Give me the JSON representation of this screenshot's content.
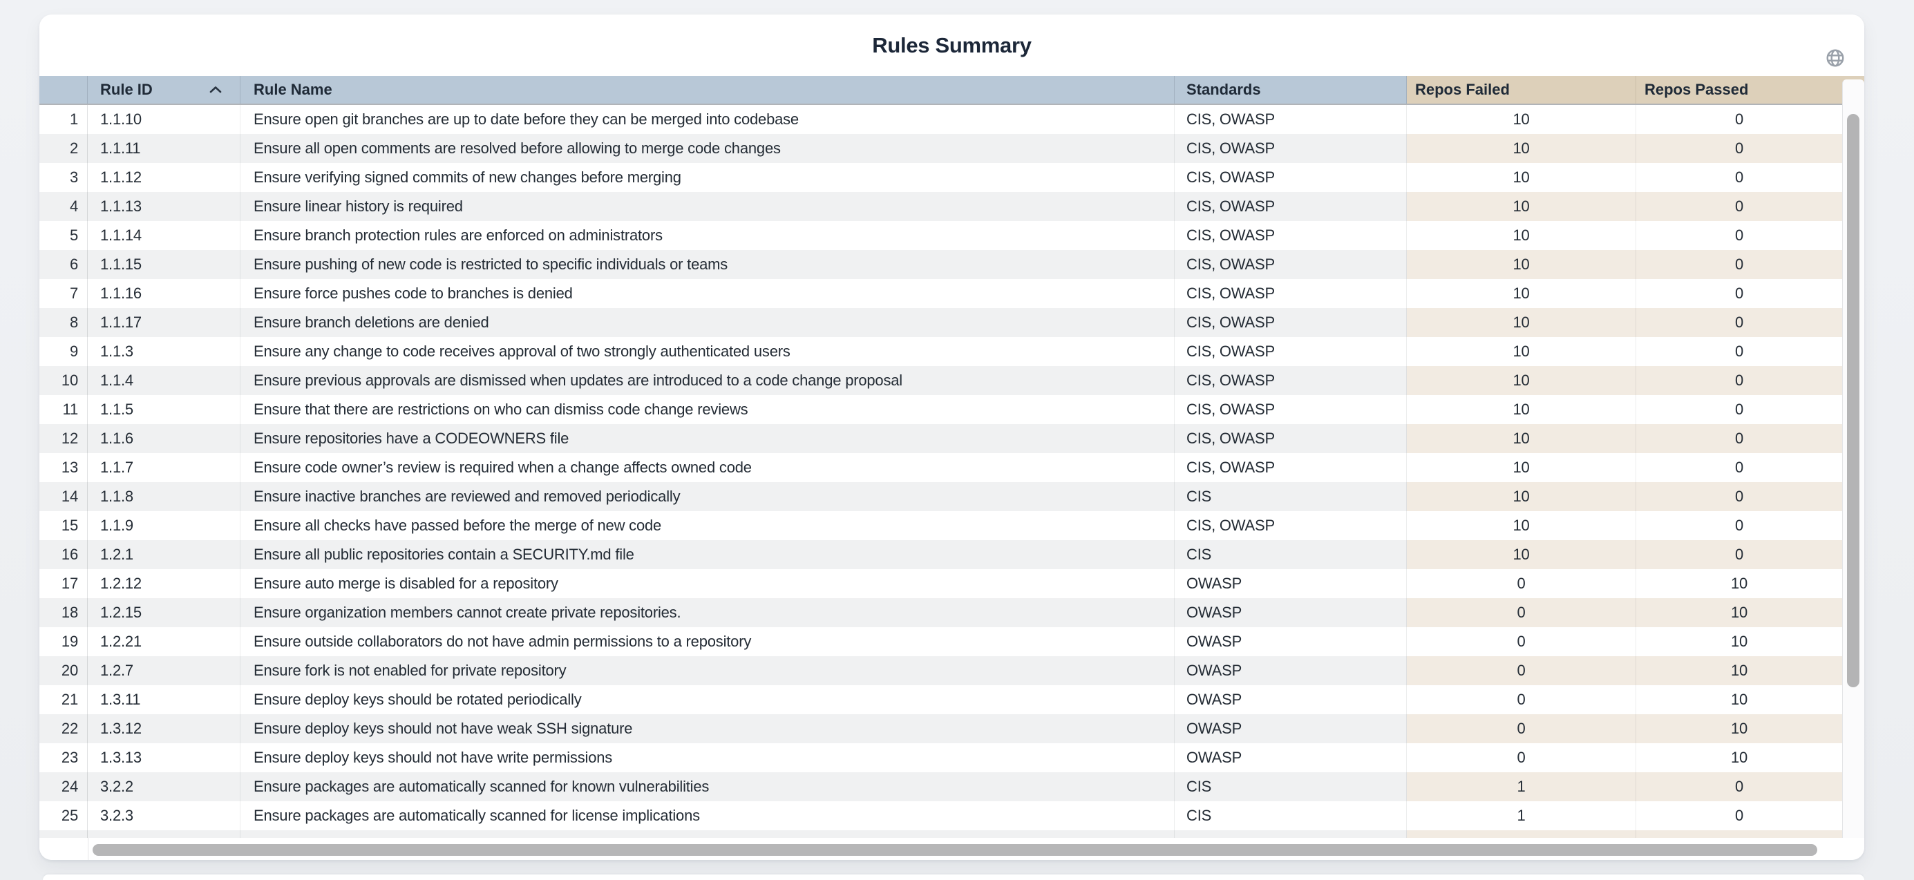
{
  "card": {
    "title": "Rules Summary"
  },
  "icons": {
    "globe": "globe-icon",
    "sort": "sort-ascending-icon"
  },
  "colors": {
    "header_blue": "#b8c8d7",
    "header_tan": "#ddd0ba",
    "stripe_gray": "#f0f1f2",
    "stripe_beige": "#f2ebe2",
    "text_dark": "#1f2a37",
    "scrollbar_thumb": "#b4b4b5",
    "page_background": "#eef0f3"
  },
  "table": {
    "columns": [
      {
        "key": "index",
        "label": "",
        "sorted": null
      },
      {
        "key": "rule_id",
        "label": "Rule ID",
        "sorted": "asc"
      },
      {
        "key": "rule_name",
        "label": "Rule Name",
        "sorted": null
      },
      {
        "key": "standards",
        "label": "Standards",
        "sorted": null
      },
      {
        "key": "repos_failed",
        "label": "Repos Failed",
        "sorted": null
      },
      {
        "key": "repos_passed",
        "label": "Repos Passed",
        "sorted": null
      }
    ],
    "rows": [
      {
        "index": 1,
        "rule_id": "1.1.10",
        "rule_name": "Ensure open git branches are up to date before they can be merged into codebase",
        "standards": "CIS, OWASP",
        "repos_failed": 10,
        "repos_passed": 0
      },
      {
        "index": 2,
        "rule_id": "1.1.11",
        "rule_name": "Ensure all open comments are resolved before allowing to merge code changes",
        "standards": "CIS, OWASP",
        "repos_failed": 10,
        "repos_passed": 0
      },
      {
        "index": 3,
        "rule_id": "1.1.12",
        "rule_name": "Ensure verifying signed commits of new changes before merging",
        "standards": "CIS, OWASP",
        "repos_failed": 10,
        "repos_passed": 0
      },
      {
        "index": 4,
        "rule_id": "1.1.13",
        "rule_name": "Ensure linear history is required",
        "standards": "CIS, OWASP",
        "repos_failed": 10,
        "repos_passed": 0
      },
      {
        "index": 5,
        "rule_id": "1.1.14",
        "rule_name": "Ensure branch protection rules are enforced on administrators",
        "standards": "CIS, OWASP",
        "repos_failed": 10,
        "repos_passed": 0
      },
      {
        "index": 6,
        "rule_id": "1.1.15",
        "rule_name": "Ensure pushing of new code is restricted to specific individuals or teams",
        "standards": "CIS, OWASP",
        "repos_failed": 10,
        "repos_passed": 0
      },
      {
        "index": 7,
        "rule_id": "1.1.16",
        "rule_name": "Ensure force pushes code to branches is denied",
        "standards": "CIS, OWASP",
        "repos_failed": 10,
        "repos_passed": 0
      },
      {
        "index": 8,
        "rule_id": "1.1.17",
        "rule_name": "Ensure branch deletions are denied",
        "standards": "CIS, OWASP",
        "repos_failed": 10,
        "repos_passed": 0
      },
      {
        "index": 9,
        "rule_id": "1.1.3",
        "rule_name": "Ensure any change to code receives approval of two strongly authenticated users",
        "standards": "CIS, OWASP",
        "repos_failed": 10,
        "repos_passed": 0
      },
      {
        "index": 10,
        "rule_id": "1.1.4",
        "rule_name": "Ensure previous approvals are dismissed when updates are introduced to a code change proposal",
        "standards": "CIS, OWASP",
        "repos_failed": 10,
        "repos_passed": 0
      },
      {
        "index": 11,
        "rule_id": "1.1.5",
        "rule_name": "Ensure that there are restrictions on who can dismiss code change reviews",
        "standards": "CIS, OWASP",
        "repos_failed": 10,
        "repos_passed": 0
      },
      {
        "index": 12,
        "rule_id": "1.1.6",
        "rule_name": "Ensure repositories have a CODEOWNERS file",
        "standards": "CIS, OWASP",
        "repos_failed": 10,
        "repos_passed": 0
      },
      {
        "index": 13,
        "rule_id": "1.1.7",
        "rule_name": "Ensure code owner’s review is required when a change affects owned code",
        "standards": "CIS, OWASP",
        "repos_failed": 10,
        "repos_passed": 0
      },
      {
        "index": 14,
        "rule_id": "1.1.8",
        "rule_name": "Ensure inactive branches are reviewed and removed periodically",
        "standards": "CIS",
        "repos_failed": 10,
        "repos_passed": 0
      },
      {
        "index": 15,
        "rule_id": "1.1.9",
        "rule_name": "Ensure all checks have passed before the merge of new code",
        "standards": "CIS, OWASP",
        "repos_failed": 10,
        "repos_passed": 0
      },
      {
        "index": 16,
        "rule_id": "1.2.1",
        "rule_name": "Ensure all public repositories contain a SECURITY.md file",
        "standards": "CIS",
        "repos_failed": 10,
        "repos_passed": 0
      },
      {
        "index": 17,
        "rule_id": "1.2.12",
        "rule_name": "Ensure auto merge is disabled for a repository",
        "standards": "OWASP",
        "repos_failed": 0,
        "repos_passed": 10
      },
      {
        "index": 18,
        "rule_id": "1.2.15",
        "rule_name": "Ensure organization members cannot create private repositories.",
        "standards": "OWASP",
        "repos_failed": 0,
        "repos_passed": 10
      },
      {
        "index": 19,
        "rule_id": "1.2.21",
        "rule_name": "Ensure outside collaborators do not have admin permissions to a repository",
        "standards": "OWASP",
        "repos_failed": 0,
        "repos_passed": 10
      },
      {
        "index": 20,
        "rule_id": "1.2.7",
        "rule_name": "Ensure fork is not enabled for private repository",
        "standards": "OWASP",
        "repos_failed": 0,
        "repos_passed": 10
      },
      {
        "index": 21,
        "rule_id": "1.3.11",
        "rule_name": "Ensure deploy keys should be rotated periodically",
        "standards": "OWASP",
        "repos_failed": 0,
        "repos_passed": 10
      },
      {
        "index": 22,
        "rule_id": "1.3.12",
        "rule_name": "Ensure deploy keys should not have weak SSH signature",
        "standards": "OWASP",
        "repos_failed": 0,
        "repos_passed": 10
      },
      {
        "index": 23,
        "rule_id": "1.3.13",
        "rule_name": "Ensure deploy keys should not have write permissions",
        "standards": "OWASP",
        "repos_failed": 0,
        "repos_passed": 10
      },
      {
        "index": 24,
        "rule_id": "3.2.2",
        "rule_name": "Ensure packages are automatically scanned for known vulnerabilities",
        "standards": "CIS",
        "repos_failed": 1,
        "repos_passed": 0
      },
      {
        "index": 25,
        "rule_id": "3.2.3",
        "rule_name": "Ensure packages are automatically scanned for license implications",
        "standards": "CIS",
        "repos_failed": 1,
        "repos_passed": 0
      }
    ]
  }
}
